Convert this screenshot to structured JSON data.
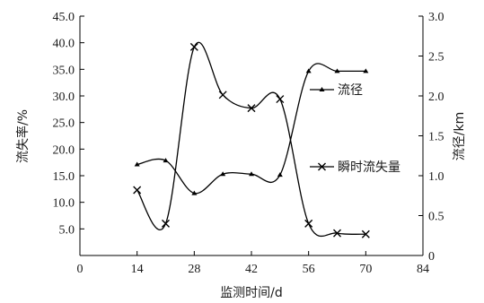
{
  "chart_data": {
    "type": "line",
    "x_axis": {
      "label": "监测时间/d",
      "min": 0,
      "max": 84,
      "ticks": [
        "0",
        "14",
        "28",
        "42",
        "56",
        "70",
        "84"
      ]
    },
    "y_left": {
      "label": "流失率/%",
      "min": 0,
      "max": 45,
      "ticks": [
        "5.0",
        "10.0",
        "15.0",
        "20.0",
        "25.0",
        "30.0",
        "35.0",
        "40.0",
        "45.0"
      ]
    },
    "y_right": {
      "label": "流径/km",
      "min": 0,
      "max": 3,
      "ticks": [
        "0",
        "0.5",
        "1.0",
        "1.5",
        "2.0",
        "2.5",
        "3.0"
      ]
    },
    "series": [
      {
        "name": "流径",
        "axis": "right",
        "marker": "triangle",
        "x": [
          14,
          21,
          28,
          35,
          42,
          49,
          56,
          63,
          70
        ],
        "y": [
          1.14,
          1.19,
          0.78,
          1.02,
          1.02,
          1.01,
          2.31,
          2.31,
          2.31
        ]
      },
      {
        "name": "瞬时流失量",
        "axis": "left",
        "marker": "x",
        "x": [
          14,
          21,
          28,
          35,
          42,
          49,
          56,
          63,
          70
        ],
        "y": [
          12.3,
          6.0,
          39.2,
          30.2,
          27.7,
          29.4,
          6.0,
          4.2,
          4.0
        ]
      }
    ],
    "legend": {
      "position": "right"
    },
    "grid": false
  }
}
